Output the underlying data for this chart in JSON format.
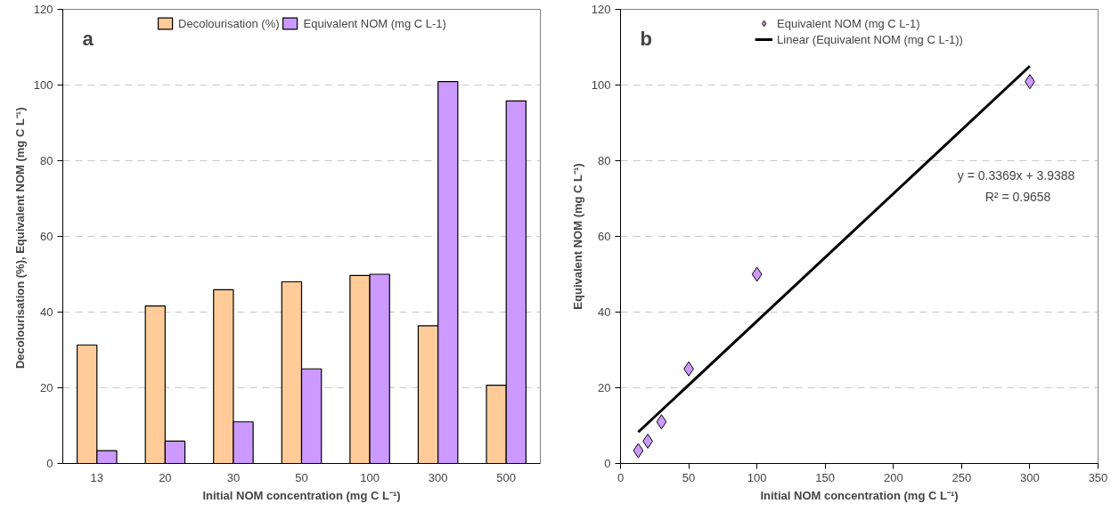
{
  "chart_data": [
    {
      "type": "bar",
      "xlabel": "Initial NOM concentration (mg C L⁻¹)",
      "ylabel": "Decolourisation (%),  Equivalent NOM (mg C L⁻¹)",
      "annotations": [
        "a"
      ],
      "categories": [
        "13",
        "20",
        "30",
        "50",
        "100",
        "300",
        "500"
      ],
      "series": [
        {
          "name": "Decolourisation (%)",
          "color": "#ffcc99",
          "values": [
            31.3,
            41.6,
            45.9,
            48.0,
            49.7,
            36.4,
            20.7
          ]
        },
        {
          "name": "Equivalent NOM (mg C L-1)",
          "color": "#cc99ff",
          "values": [
            3.4,
            5.9,
            11.0,
            25.0,
            50.0,
            100.9,
            95.8
          ]
        }
      ],
      "ylim": [
        0,
        120
      ],
      "yticks": [
        0,
        20,
        40,
        60,
        80,
        100,
        120
      ],
      "grid": "y",
      "legend": "top"
    },
    {
      "type": "scatter",
      "xlabel": "Initial NOM concentration (mg C L⁻¹)",
      "ylabel": "Equivalent NOM (mg C L⁻¹)",
      "annotations": [
        "b",
        "y = 0.3369x  + 3.9388",
        "R² = 0.9658"
      ],
      "series": [
        {
          "name": "Equivalent NOM (mg C L-1)",
          "color": "#cc99ff",
          "marker": "diamond",
          "x": [
            13,
            20,
            30,
            50,
            100,
            300
          ],
          "values": [
            3.4,
            5.9,
            11.0,
            25.0,
            50.0,
            100.9
          ]
        },
        {
          "name": "Linear (Equivalent NOM (mg C L-1))",
          "type": "line",
          "color": "#000000",
          "x": [
            13,
            300
          ],
          "values": [
            8.3,
            105.0
          ]
        }
      ],
      "xlim": [
        0,
        350
      ],
      "xticks": [
        0,
        50,
        100,
        150,
        200,
        250,
        300,
        350
      ],
      "ylim": [
        0,
        120
      ],
      "yticks": [
        0,
        20,
        40,
        60,
        80,
        100,
        120
      ],
      "grid": "y",
      "legend": "top"
    }
  ]
}
